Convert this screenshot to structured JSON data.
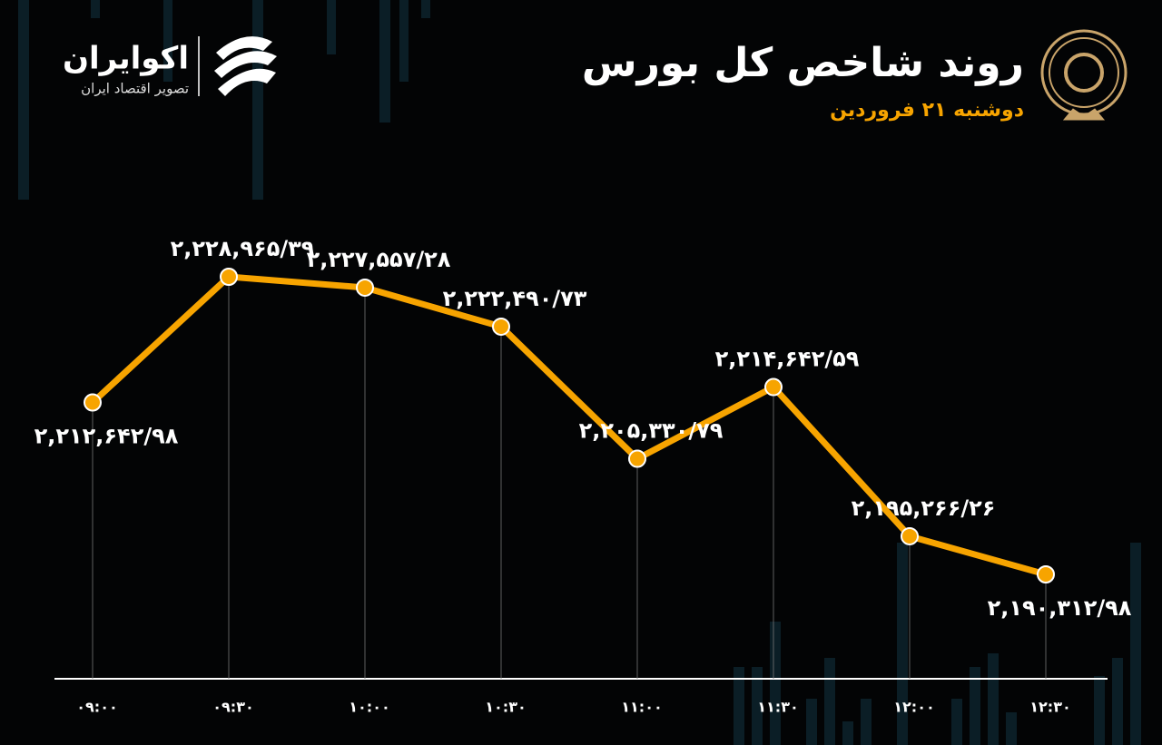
{
  "chart_data": {
    "type": "line",
    "title": "روند شاخص کل بورس",
    "subtitle": "دوشنبه ۲۱ فروردین",
    "brand_name": "اکوایران",
    "brand_tagline": "تصویر اقتصاد ایران",
    "categories": [
      "۰۹:۰۰",
      "۰۹:۳۰",
      "۱۰:۰۰",
      "۱۰:۳۰",
      "۱۱:۰۰",
      "۱۱:۳۰",
      "۱۲:۰۰",
      "۱۲:۳۰"
    ],
    "series": [
      {
        "color": "#f7a400",
        "values": [
          2212642.98,
          2228965.39,
          2227557.28,
          2222490.73,
          2205330.79,
          2214642.59,
          2195266.26,
          2190312.98
        ],
        "value_labels": [
          "۲,۲۱۲,۶۴۲/۹۸",
          "۲,۲۲۸,۹۶۵/۳۹",
          "۲,۲۲۷,۵۵۷/۲۸",
          "۲,۲۲۲,۴۹۰/۷۳",
          "۲,۲۰۵,۳۳۰/۷۹",
          "۲,۲۱۴,۶۴۲/۵۹",
          "۲,۱۹۵,۲۶۶/۲۶",
          "۲,۱۹۰,۳۱۲/۹۸"
        ]
      }
    ]
  }
}
